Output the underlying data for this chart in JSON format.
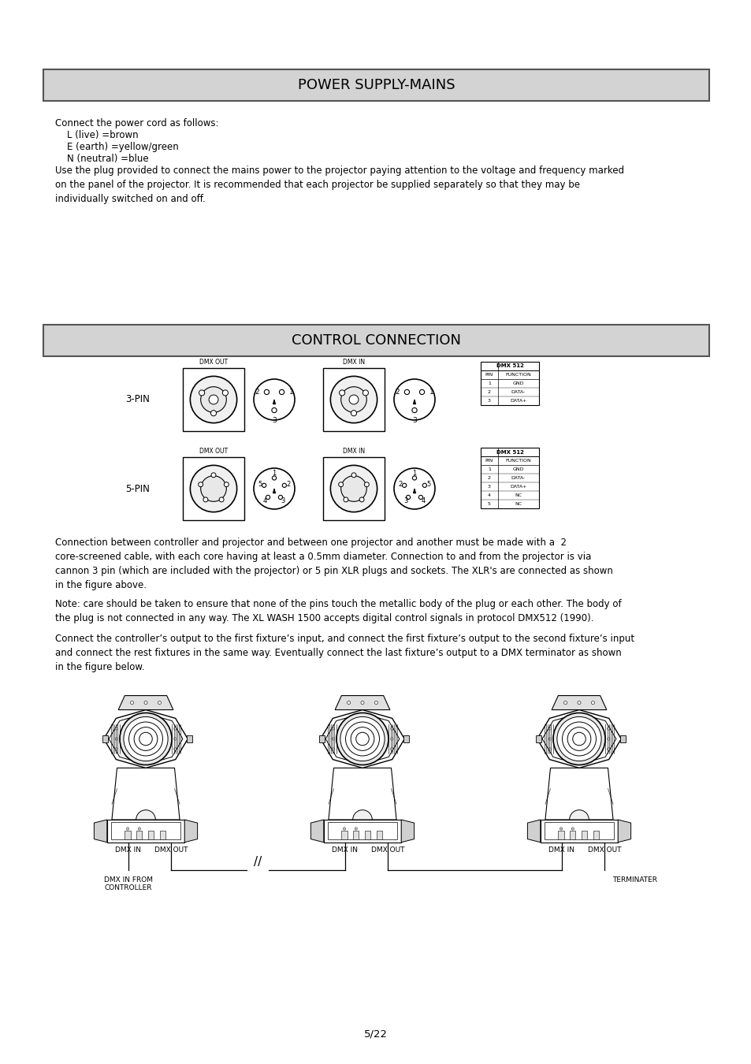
{
  "bg_color": "#ffffff",
  "title1": "POWER SUPPLY-MAINS",
  "title2": "CONTROL CONNECTION",
  "header_bg": "#d3d3d3",
  "header_border": "#555555",
  "power_line0": "Connect the power cord as follows:",
  "power_line1": "    L (live) =brown",
  "power_line2": "    E (earth) =yellow/green",
  "power_line3": "    N (neutral) =blue",
  "power_para": "Use the plug provided to connect the mains power to the projector paying attention to the voltage and frequency marked\non the panel of the projector. It is recommended that each projector be supplied separately so that they may be\nindividually switched on and off.",
  "ctrl_para1": "Connection between controller and projector and between one projector and another must be made with a  2\ncore-screened cable, with each core having at least a 0.5mm diameter. Connection to and from the projector is via\ncannon 3 pin (which are included with the projector) or 5 pin XLR plugs and sockets. The XLR's are connected as shown\nin the figure above.",
  "ctrl_para2": "Note: care should be taken to ensure that none of the pins touch the metallic body of the plug or each other. The body of\nthe plug is not connected in any way. The XL WASH 1500 accepts digital control signals in protocol DMX512 (1990).",
  "ctrl_para3": "Connect the controller’s output to the first fixture’s input, and connect the first fixture’s output to the second fixture’s input\nand connect the rest fixtures in the same way. Eventually connect the last fixture’s output to a DMX terminator as shown\nin the figure below.",
  "label_3pin": "3-PIN",
  "label_5pin": "5-PIN",
  "label_dmx_out": "DMX OUT",
  "label_dmx_in": "DMX IN",
  "label_from_ctrl": "DMX IN FROM\nCONTROLLER",
  "label_terminater": "TERMINATER",
  "page_num": "5/22",
  "body_fontsize": 8.5,
  "title_fontsize": 13,
  "small_fontsize": 6.5,
  "tiny_fontsize": 5.5
}
